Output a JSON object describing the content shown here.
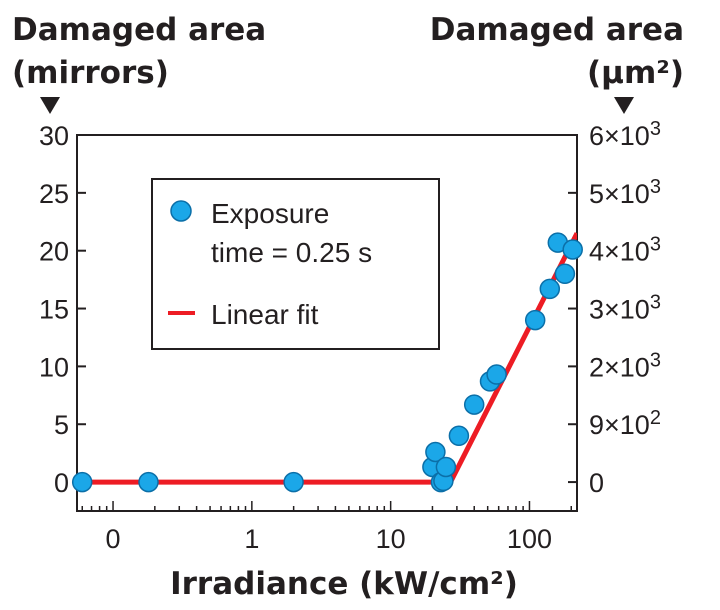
{
  "chart_data": {
    "type": "scatter",
    "title": "",
    "xlabel": "Irradiance (kW/cm²)",
    "ylabel_left": "Damaged area (mirrors)",
    "ylabel_right": "Damaged area (μm²)",
    "x_scale": "log",
    "xlim": [
      0.055,
      220
    ],
    "ylim": [
      -2.5,
      30
    ],
    "x_ticks": [
      {
        "value": 0.1,
        "label": "0"
      },
      {
        "value": 1,
        "label": "1"
      },
      {
        "value": 10,
        "label": "10"
      },
      {
        "value": 100,
        "label": "100"
      }
    ],
    "y_ticks": [
      0,
      5,
      10,
      15,
      20,
      25,
      30
    ],
    "y_right_ticks": [
      {
        "value": 0,
        "label": "0"
      },
      {
        "value": 5,
        "label": "9×10²"
      },
      {
        "value": 10,
        "label": "2×10³"
      },
      {
        "value": 15,
        "label": "3×10³"
      },
      {
        "value": 20,
        "label": "4×10³"
      },
      {
        "value": 25,
        "label": "5×10³"
      },
      {
        "value": 30,
        "label": "6×10³"
      }
    ],
    "grid": false,
    "legend_position": "top-left",
    "series": [
      {
        "name": "Exposure time = 0.25 s",
        "type": "scatter",
        "color": "#1ba7e8",
        "x": [
          0.06,
          0.18,
          2,
          20,
          21,
          23,
          24,
          25,
          31,
          40,
          52,
          58,
          110,
          140,
          160,
          180,
          205
        ],
        "y": [
          0,
          0,
          0,
          1.3,
          2.6,
          0,
          0.1,
          1.3,
          4.0,
          6.7,
          8.7,
          9.3,
          14.0,
          16.7,
          20.7,
          18.0,
          20.1
        ]
      },
      {
        "name": "Linear fit",
        "type": "line",
        "color": "#ed1c24",
        "x": [
          0.055,
          20,
          27,
          220
        ],
        "y": [
          0,
          0,
          0,
          21.5
        ]
      }
    ]
  },
  "legend": {
    "scatter_label_line1": "Exposure",
    "scatter_label_line2": "time = 0.25 s",
    "fit_label": "Linear fit"
  }
}
